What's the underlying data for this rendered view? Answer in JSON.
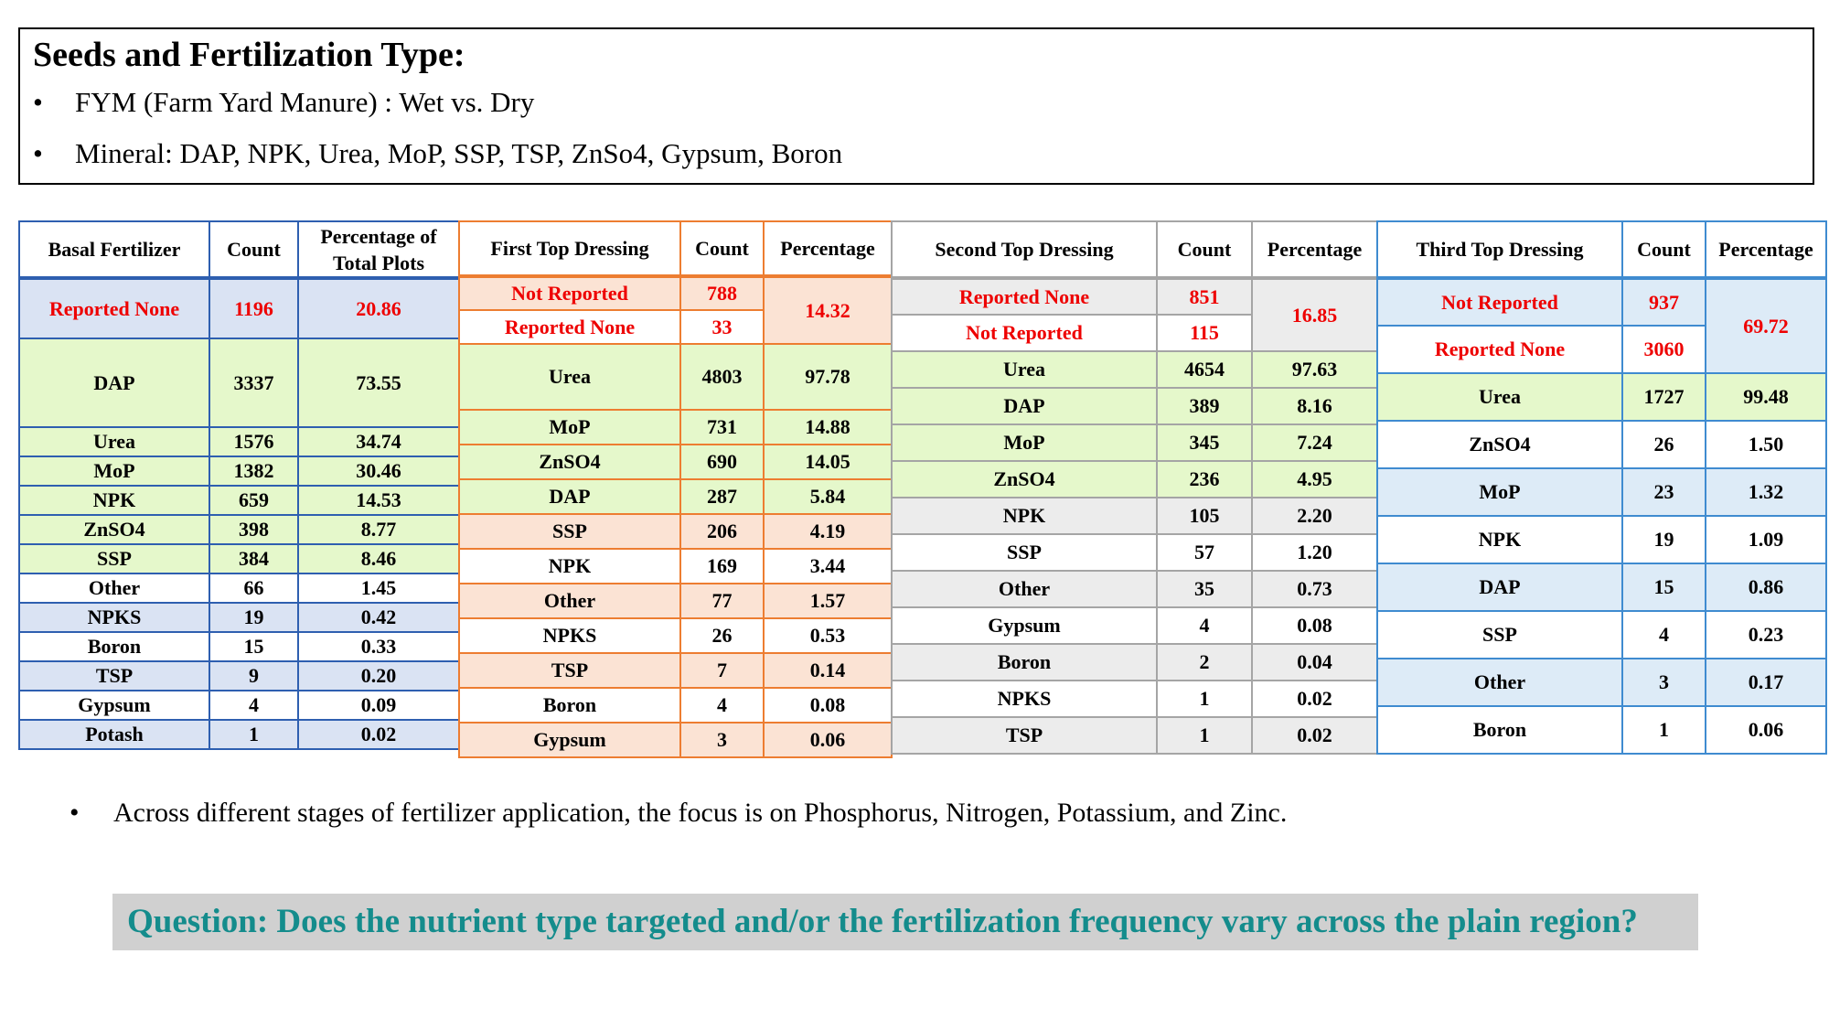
{
  "header": {
    "title": "Seeds and Fertilization Type:",
    "bullets": [
      "FYM (Farm Yard Manure) : Wet vs. Dry",
      "Mineral: DAP, NPK, Urea, MoP, SSP, TSP, ZnSo4, Gypsum, Boron"
    ],
    "bullet_symbol": "•"
  },
  "tables": {
    "basal": {
      "headers": [
        "Basal Fertilizer",
        "Count",
        "Percentage of Total Plots"
      ],
      "rows": [
        {
          "name": "Reported None",
          "count": "1196",
          "pct": "20.86"
        },
        {
          "name": "DAP",
          "count": "3337",
          "pct": "73.55"
        },
        {
          "name": "Urea",
          "count": "1576",
          "pct": "34.74"
        },
        {
          "name": "MoP",
          "count": "1382",
          "pct": "30.46"
        },
        {
          "name": "NPK",
          "count": "659",
          "pct": "14.53"
        },
        {
          "name": "ZnSO4",
          "count": "398",
          "pct": "8.77"
        },
        {
          "name": "SSP",
          "count": "384",
          "pct": "8.46"
        },
        {
          "name": "Other",
          "count": "66",
          "pct": "1.45"
        },
        {
          "name": "NPKS",
          "count": "19",
          "pct": "0.42"
        },
        {
          "name": "Boron",
          "count": "15",
          "pct": "0.33"
        },
        {
          "name": "TSP",
          "count": "9",
          "pct": "0.20"
        },
        {
          "name": "Gypsum",
          "count": "4",
          "pct": "0.09"
        },
        {
          "name": "Potash",
          "count": "1",
          "pct": "0.02"
        }
      ]
    },
    "first": {
      "headers": [
        "First Top Dressing",
        "Count",
        "Percentage"
      ],
      "missing_pct": "14.32",
      "rows": [
        {
          "name": "Not Reported",
          "count": "788"
        },
        {
          "name": "Reported None",
          "count": "33"
        },
        {
          "name": "Urea",
          "count": "4803",
          "pct": "97.78"
        },
        {
          "name": "MoP",
          "count": "731",
          "pct": "14.88"
        },
        {
          "name": "ZnSO4",
          "count": "690",
          "pct": "14.05"
        },
        {
          "name": "DAP",
          "count": "287",
          "pct": "5.84"
        },
        {
          "name": "SSP",
          "count": "206",
          "pct": "4.19"
        },
        {
          "name": "NPK",
          "count": "169",
          "pct": "3.44"
        },
        {
          "name": "Other",
          "count": "77",
          "pct": "1.57"
        },
        {
          "name": "NPKS",
          "count": "26",
          "pct": "0.53"
        },
        {
          "name": "TSP",
          "count": "7",
          "pct": "0.14"
        },
        {
          "name": "Boron",
          "count": "4",
          "pct": "0.08"
        },
        {
          "name": "Gypsum",
          "count": "3",
          "pct": "0.06"
        }
      ]
    },
    "second": {
      "headers": [
        "Second Top Dressing",
        "Count",
        "Percentage"
      ],
      "missing_pct": "16.85",
      "rows": [
        {
          "name": "Reported None",
          "count": "851"
        },
        {
          "name": "Not Reported",
          "count": "115"
        },
        {
          "name": "Urea",
          "count": "4654",
          "pct": "97.63"
        },
        {
          "name": "DAP",
          "count": "389",
          "pct": "8.16"
        },
        {
          "name": "MoP",
          "count": "345",
          "pct": "7.24"
        },
        {
          "name": "ZnSO4",
          "count": "236",
          "pct": "4.95"
        },
        {
          "name": "NPK",
          "count": "105",
          "pct": "2.20"
        },
        {
          "name": "SSP",
          "count": "57",
          "pct": "1.20"
        },
        {
          "name": "Other",
          "count": "35",
          "pct": "0.73"
        },
        {
          "name": "Gypsum",
          "count": "4",
          "pct": "0.08"
        },
        {
          "name": "Boron",
          "count": "2",
          "pct": "0.04"
        },
        {
          "name": "NPKS",
          "count": "1",
          "pct": "0.02"
        },
        {
          "name": "TSP",
          "count": "1",
          "pct": "0.02"
        }
      ]
    },
    "third": {
      "headers": [
        "Third Top Dressing",
        "Count",
        "Percentage"
      ],
      "missing_pct": "69.72",
      "rows": [
        {
          "name": "Not Reported",
          "count": "937"
        },
        {
          "name": "Reported None",
          "count": "3060"
        },
        {
          "name": "Urea",
          "count": "1727",
          "pct": "99.48"
        },
        {
          "name": "ZnSO4",
          "count": "26",
          "pct": "1.50"
        },
        {
          "name": "MoP",
          "count": "23",
          "pct": "1.32"
        },
        {
          "name": "NPK",
          "count": "19",
          "pct": "1.09"
        },
        {
          "name": "DAP",
          "count": "15",
          "pct": "0.86"
        },
        {
          "name": "SSP",
          "count": "4",
          "pct": "0.23"
        },
        {
          "name": "Other",
          "count": "3",
          "pct": "0.17"
        },
        {
          "name": "Boron",
          "count": "1",
          "pct": "0.06"
        }
      ]
    }
  },
  "focus_note": "Across different stages of fertilizer application, the focus is on Phosphorus, Nitrogen, Potassium, and Zinc.",
  "question": "Question: Does the nutrient type targeted and/or the fertilization frequency vary across the plain region?",
  "colors": {
    "basal_border": "#2e5fb0",
    "first_border": "#ed7d31",
    "second_border": "#a5a5a5",
    "third_border": "#3f8bd0",
    "highlight_red": "#ee0000",
    "question_teal": "#148c8c",
    "question_bg": "#d0d0d0"
  }
}
